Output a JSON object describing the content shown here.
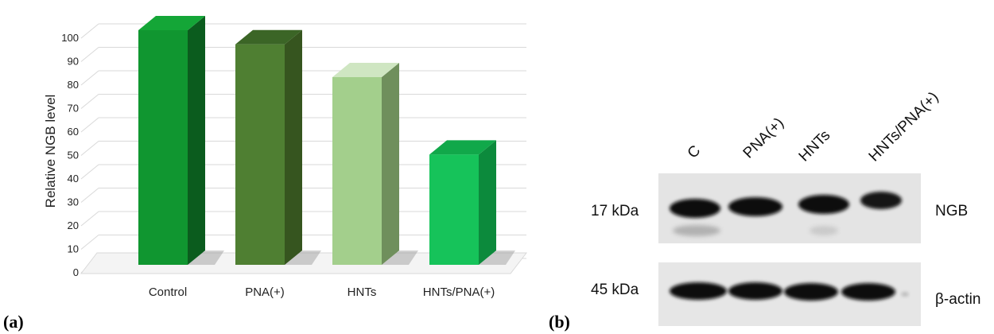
{
  "panel_a": {
    "label": "(a)",
    "chart_data": {
      "type": "bar",
      "style": "3d",
      "title": "",
      "xlabel": "",
      "ylabel": "Relative NGB level",
      "categories": [
        "Control",
        "PNA(+)",
        "HNTs",
        "HNTs/PNA(+)"
      ],
      "values": [
        100,
        94,
        80,
        47
      ],
      "bar_colors": [
        "#109630",
        "#4f7f32",
        "#a3cf8c",
        "#16c35a"
      ],
      "side_colors": [
        "#0b5c1e",
        "#36551f",
        "#6f8f5c",
        "#0c8a3c"
      ],
      "top_colors": [
        "#14a637",
        "#3b6526",
        "#cfe6c2",
        "#11a84a"
      ],
      "ylim": [
        0,
        100
      ],
      "yticks": [
        0,
        10,
        20,
        30,
        40,
        50,
        60,
        70,
        80,
        90,
        100
      ],
      "grid": true,
      "legend": "none"
    }
  },
  "panel_b": {
    "label": "(b)",
    "lanes": [
      "C",
      "PNA(+)",
      "HNTs",
      "HNTs/PNA(+)"
    ],
    "rows": [
      {
        "marker": "17 kDa",
        "protein": "NGB"
      },
      {
        "marker": "45 kDa",
        "protein": "β-actin"
      }
    ]
  }
}
